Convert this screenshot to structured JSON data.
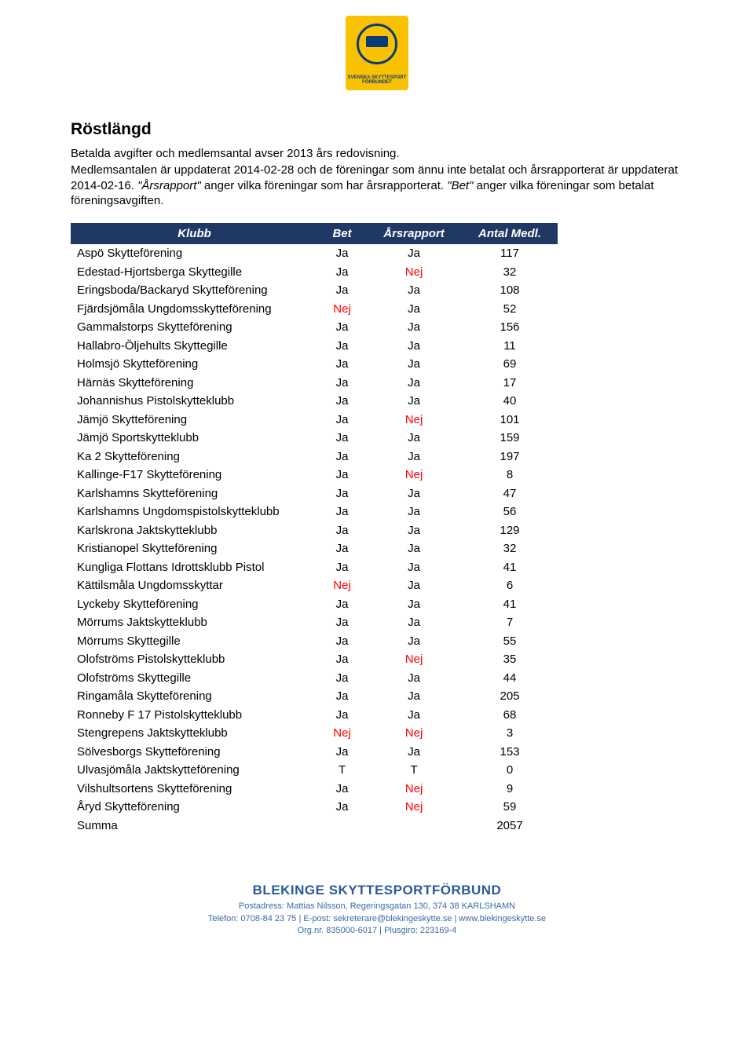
{
  "logo_text": "SVENSKA SKYTTESPORT FÖRBUNDET",
  "title": "Röstlängd",
  "intro_lines": [
    "Betalda avgifter och medlemsantal avser 2013 års redovisning.",
    "Medlemsantalen är uppdaterat 2014-02-28 och de föreningar som ännu inte betalat och årsrapporterat är uppdaterat 2014-02-16. <em>\"Årsrapport\"</em> anger vilka föreningar som har årsrapporterat. <em>\"Bet\"</em> anger vilka föreningar som betalat föreningsavgiften."
  ],
  "table": {
    "headers": {
      "klubb": "Klubb",
      "bet": "Bet",
      "ars": "Årsrapport",
      "ant": "Antal Medl."
    },
    "header_bg": "#1f3864",
    "header_fg": "#ffffff",
    "nej_color": "#ff0000",
    "rows": [
      {
        "klubb": "Aspö Skytteförening",
        "bet": "Ja",
        "ars": "Ja",
        "ant": "117"
      },
      {
        "klubb": "Edestad-Hjortsberga Skyttegille",
        "bet": "Ja",
        "ars": "Nej",
        "ant": "32"
      },
      {
        "klubb": "Eringsboda/Backaryd Skytteförening",
        "bet": "Ja",
        "ars": "Ja",
        "ant": "108"
      },
      {
        "klubb": "Fjärdsjömåla Ungdomsskytteförening",
        "bet": "Nej",
        "ars": "Ja",
        "ant": "52"
      },
      {
        "klubb": "Gammalstorps Skytteförening",
        "bet": "Ja",
        "ars": "Ja",
        "ant": "156"
      },
      {
        "klubb": "Hallabro-Öljehults Skyttegille",
        "bet": "Ja",
        "ars": "Ja",
        "ant": "11"
      },
      {
        "klubb": "Holmsjö Skytteförening",
        "bet": "Ja",
        "ars": "Ja",
        "ant": "69"
      },
      {
        "klubb": "Härnäs Skytteförening",
        "bet": "Ja",
        "ars": "Ja",
        "ant": "17"
      },
      {
        "klubb": "Johannishus Pistolskytteklubb",
        "bet": "Ja",
        "ars": "Ja",
        "ant": "40"
      },
      {
        "klubb": "Jämjö Skytteförening",
        "bet": "Ja",
        "ars": "Nej",
        "ant": "101"
      },
      {
        "klubb": "Jämjö Sportskytteklubb",
        "bet": "Ja",
        "ars": "Ja",
        "ant": "159"
      },
      {
        "klubb": "Ka 2 Skytteförening",
        "bet": "Ja",
        "ars": "Ja",
        "ant": "197"
      },
      {
        "klubb": "Kallinge-F17 Skytteförening",
        "bet": "Ja",
        "ars": "Nej",
        "ant": "8"
      },
      {
        "klubb": "Karlshamns Skytteförening",
        "bet": "Ja",
        "ars": "Ja",
        "ant": "47"
      },
      {
        "klubb": "Karlshamns Ungdomspistolskytteklubb",
        "bet": "Ja",
        "ars": "Ja",
        "ant": "56"
      },
      {
        "klubb": "Karlskrona Jaktskytteklubb",
        "bet": "Ja",
        "ars": "Ja",
        "ant": "129"
      },
      {
        "klubb": "Kristianopel Skytteförening",
        "bet": "Ja",
        "ars": "Ja",
        "ant": "32"
      },
      {
        "klubb": "Kungliga Flottans Idrottsklubb Pistol",
        "bet": "Ja",
        "ars": "Ja",
        "ant": "41"
      },
      {
        "klubb": "Kättilsmåla Ungdomsskyttar",
        "bet": "Nej",
        "ars": "Ja",
        "ant": "6"
      },
      {
        "klubb": "Lyckeby Skytteförening",
        "bet": "Ja",
        "ars": "Ja",
        "ant": "41"
      },
      {
        "klubb": "Mörrums Jaktskytteklubb",
        "bet": "Ja",
        "ars": "Ja",
        "ant": "7"
      },
      {
        "klubb": "Mörrums Skyttegille",
        "bet": "Ja",
        "ars": "Ja",
        "ant": "55"
      },
      {
        "klubb": "Olofströms Pistolskytteklubb",
        "bet": "Ja",
        "ars": "Nej",
        "ant": "35"
      },
      {
        "klubb": "Olofströms Skyttegille",
        "bet": "Ja",
        "ars": "Ja",
        "ant": "44"
      },
      {
        "klubb": "Ringamåla Skytteförening",
        "bet": "Ja",
        "ars": "Ja",
        "ant": "205"
      },
      {
        "klubb": "Ronneby F 17 Pistolskytteklubb",
        "bet": "Ja",
        "ars": "Ja",
        "ant": "68"
      },
      {
        "klubb": "Stengrepens Jaktskytteklubb",
        "bet": "Nej",
        "ars": "Nej",
        "ant": "3"
      },
      {
        "klubb": "Sölvesborgs Skytteförening",
        "bet": "Ja",
        "ars": "Ja",
        "ant": "153"
      },
      {
        "klubb": "Ulvasjömåla Jaktskytteförening",
        "bet": "T",
        "ars": "T",
        "ant": "0"
      },
      {
        "klubb": "Vilshultsortens Skytteförening",
        "bet": "Ja",
        "ars": "Nej",
        "ant": "9"
      },
      {
        "klubb": "Åryd Skytteförening",
        "bet": "Ja",
        "ars": "Nej",
        "ant": "59"
      }
    ],
    "sum_label": "Summa",
    "sum_value": "2057"
  },
  "footer": {
    "brand": "BLEKINGE SKYTTESPORTFÖRBUND",
    "lines": [
      "Postadress: Mattias Nilsson, Regeringsgatan 130, 374 38 KARLSHAMN",
      "Telefon: 0708-84 23 75  |  E-post: sekreterare@blekingeskytte.se  |  www.blekingeskytte.se",
      "Org.nr. 835000-6017  |  Plusgiro: 223169-4"
    ]
  }
}
